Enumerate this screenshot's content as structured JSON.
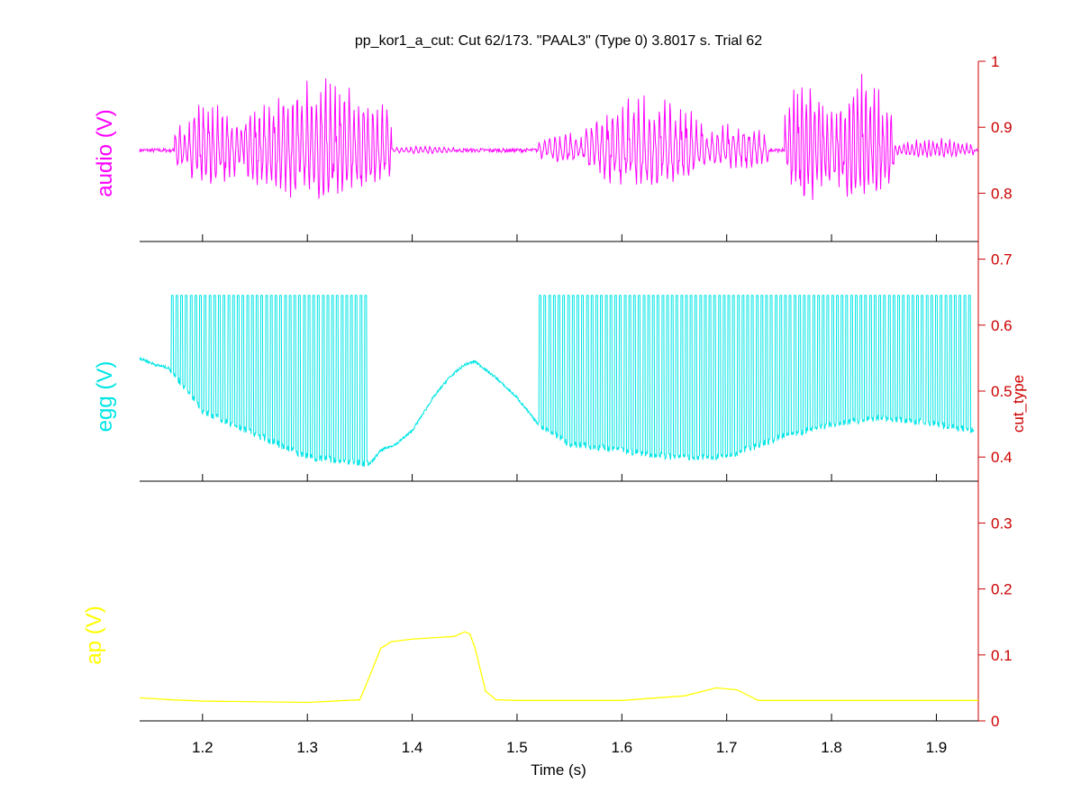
{
  "chart_data": {
    "type": "line",
    "title": "pp_kor1_a_cut: Cut 62/173. \"PAAL3\" (Type 0) 3.8017 s. Trial 62",
    "xlabel": "Time (s)",
    "xlim": [
      1.14,
      1.94
    ],
    "x_ticks": [
      1.2,
      1.3,
      1.4,
      1.5,
      1.6,
      1.7,
      1.8,
      1.9
    ],
    "x_tick_labels": [
      "1.2",
      "1.3",
      "1.4",
      "1.5",
      "1.6",
      "1.7",
      "1.8",
      "1.9"
    ],
    "right_axis": {
      "label": "cut_type",
      "ylim": [
        0,
        1
      ],
      "ticks": [
        0,
        0.1,
        0.2,
        0.3,
        0.4,
        0.5,
        0.6,
        0.7,
        0.8,
        0.9,
        1
      ],
      "tick_labels": [
        "0",
        "0.1",
        "0.2",
        "0.3",
        "0.4",
        "0.5",
        "0.6",
        "0.7",
        "0.8",
        "0.9",
        "1"
      ],
      "color": "#cc0000"
    },
    "grid": false,
    "legend": "none",
    "series": [
      {
        "name": "audio (V)",
        "color": "#ff00ff",
        "kind": "oscillation",
        "baseline": 0.865,
        "x_start": 1.14,
        "x_end": 1.94,
        "segments": [
          {
            "x_start": 1.173,
            "x_end": 1.24,
            "amplitude": 0.065,
            "period": 0.0045
          },
          {
            "x_start": 1.24,
            "x_end": 1.38,
            "amplitude": 0.09,
            "period": 0.0045
          },
          {
            "x_start": 1.38,
            "x_end": 1.44,
            "amplitude": 0.006,
            "period": 0.0045
          },
          {
            "x_start": 1.52,
            "x_end": 1.565,
            "amplitude": 0.025,
            "period": 0.005
          },
          {
            "x_start": 1.565,
            "x_end": 1.68,
            "amplitude": 0.07,
            "period": 0.005
          },
          {
            "x_start": 1.68,
            "x_end": 1.74,
            "amplitude": 0.035,
            "period": 0.005
          },
          {
            "x_start": 1.755,
            "x_end": 1.8,
            "amplitude": 0.09,
            "period": 0.004
          },
          {
            "x_start": 1.8,
            "x_end": 1.86,
            "amplitude": 0.095,
            "period": 0.004
          },
          {
            "x_start": 1.86,
            "x_end": 1.935,
            "amplitude": 0.015,
            "period": 0.004
          }
        ]
      },
      {
        "name": "egg (V)",
        "color": "#00e5e5",
        "kind": "pulse-train",
        "smooth": {
          "x": [
            1.14,
            1.155,
            1.168,
            1.2,
            1.3,
            1.36,
            1.37,
            1.385,
            1.4,
            1.42,
            1.435,
            1.45,
            1.46,
            1.48,
            1.5,
            1.52,
            1.55,
            1.65,
            1.7,
            1.75,
            1.8,
            1.85,
            1.9,
            1.935
          ],
          "y": [
            0.55,
            0.54,
            0.535,
            0.47,
            0.4,
            0.39,
            0.41,
            0.42,
            0.44,
            0.49,
            0.52,
            0.54,
            0.545,
            0.52,
            0.49,
            0.45,
            0.42,
            0.4,
            0.4,
            0.43,
            0.45,
            0.46,
            0.45,
            0.44
          ]
        },
        "voiced_intervals": [
          [
            1.168,
            1.358
          ],
          [
            1.52,
            1.935
          ]
        ],
        "top": 0.645,
        "period": 0.0045
      },
      {
        "name": "ap (V)",
        "color": "#ffff00",
        "kind": "smooth",
        "x": [
          1.14,
          1.17,
          1.2,
          1.25,
          1.3,
          1.35,
          1.36,
          1.37,
          1.38,
          1.4,
          1.42,
          1.44,
          1.45,
          1.455,
          1.46,
          1.47,
          1.48,
          1.5,
          1.6,
          1.66,
          1.69,
          1.71,
          1.73,
          1.8,
          1.9,
          1.94
        ],
        "y": [
          0.035,
          0.032,
          0.03,
          0.029,
          0.028,
          0.032,
          0.07,
          0.11,
          0.12,
          0.124,
          0.126,
          0.128,
          0.135,
          0.132,
          0.11,
          0.045,
          0.032,
          0.031,
          0.031,
          0.038,
          0.05,
          0.047,
          0.031,
          0.031,
          0.031,
          0.031
        ]
      }
    ]
  }
}
